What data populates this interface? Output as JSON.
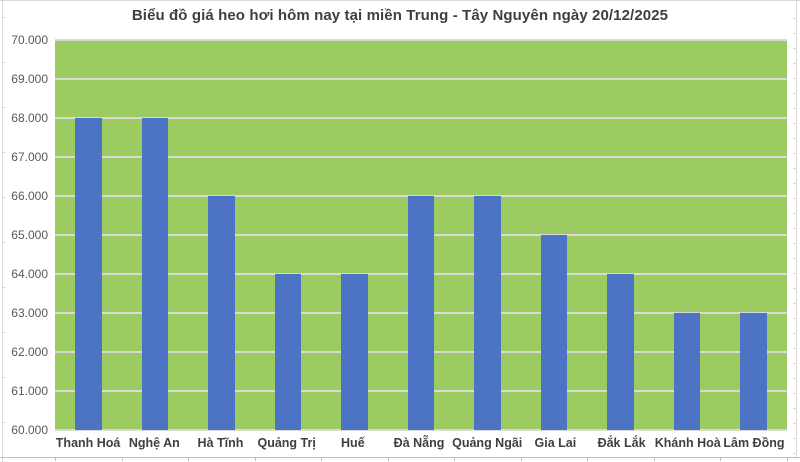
{
  "chart_data": {
    "type": "bar",
    "title": "Biểu đồ giá heo hơi hôm nay tại miền Trung - Tây Nguyên ngày 20/12/2025",
    "categories": [
      "Thanh Hoá",
      "Nghệ An",
      "Hà Tĩnh",
      "Quảng Trị",
      "Huế",
      "Đà Nẵng",
      "Quảng Ngãi",
      "Gia Lai",
      "Đắk Lắk",
      "Khánh Hoà",
      "Lâm Đồng"
    ],
    "values": [
      68000,
      68000,
      66000,
      64000,
      64000,
      66000,
      66000,
      65000,
      64000,
      63000,
      63000
    ],
    "xlabel": "",
    "ylabel": "",
    "ylim": [
      60000,
      70000
    ],
    "ytick_step": 1000,
    "ytick_labels": [
      "60.000",
      "61.000",
      "62.000",
      "63.000",
      "64.000",
      "65.000",
      "66.000",
      "67.000",
      "68.000",
      "69.000",
      "70.000"
    ],
    "grid": "horizontal",
    "legend": "none",
    "colors": {
      "plot_background": "#9ccb62",
      "bar_fill": "#4d73c4",
      "gridline": "#d9d9d9",
      "title_text": "#3f3f3f",
      "ytick_text": "#595959",
      "xtick_text": "#3f3f3f",
      "axis_line": "#bfbfbf",
      "frame_line": "#d9d9d9"
    }
  }
}
